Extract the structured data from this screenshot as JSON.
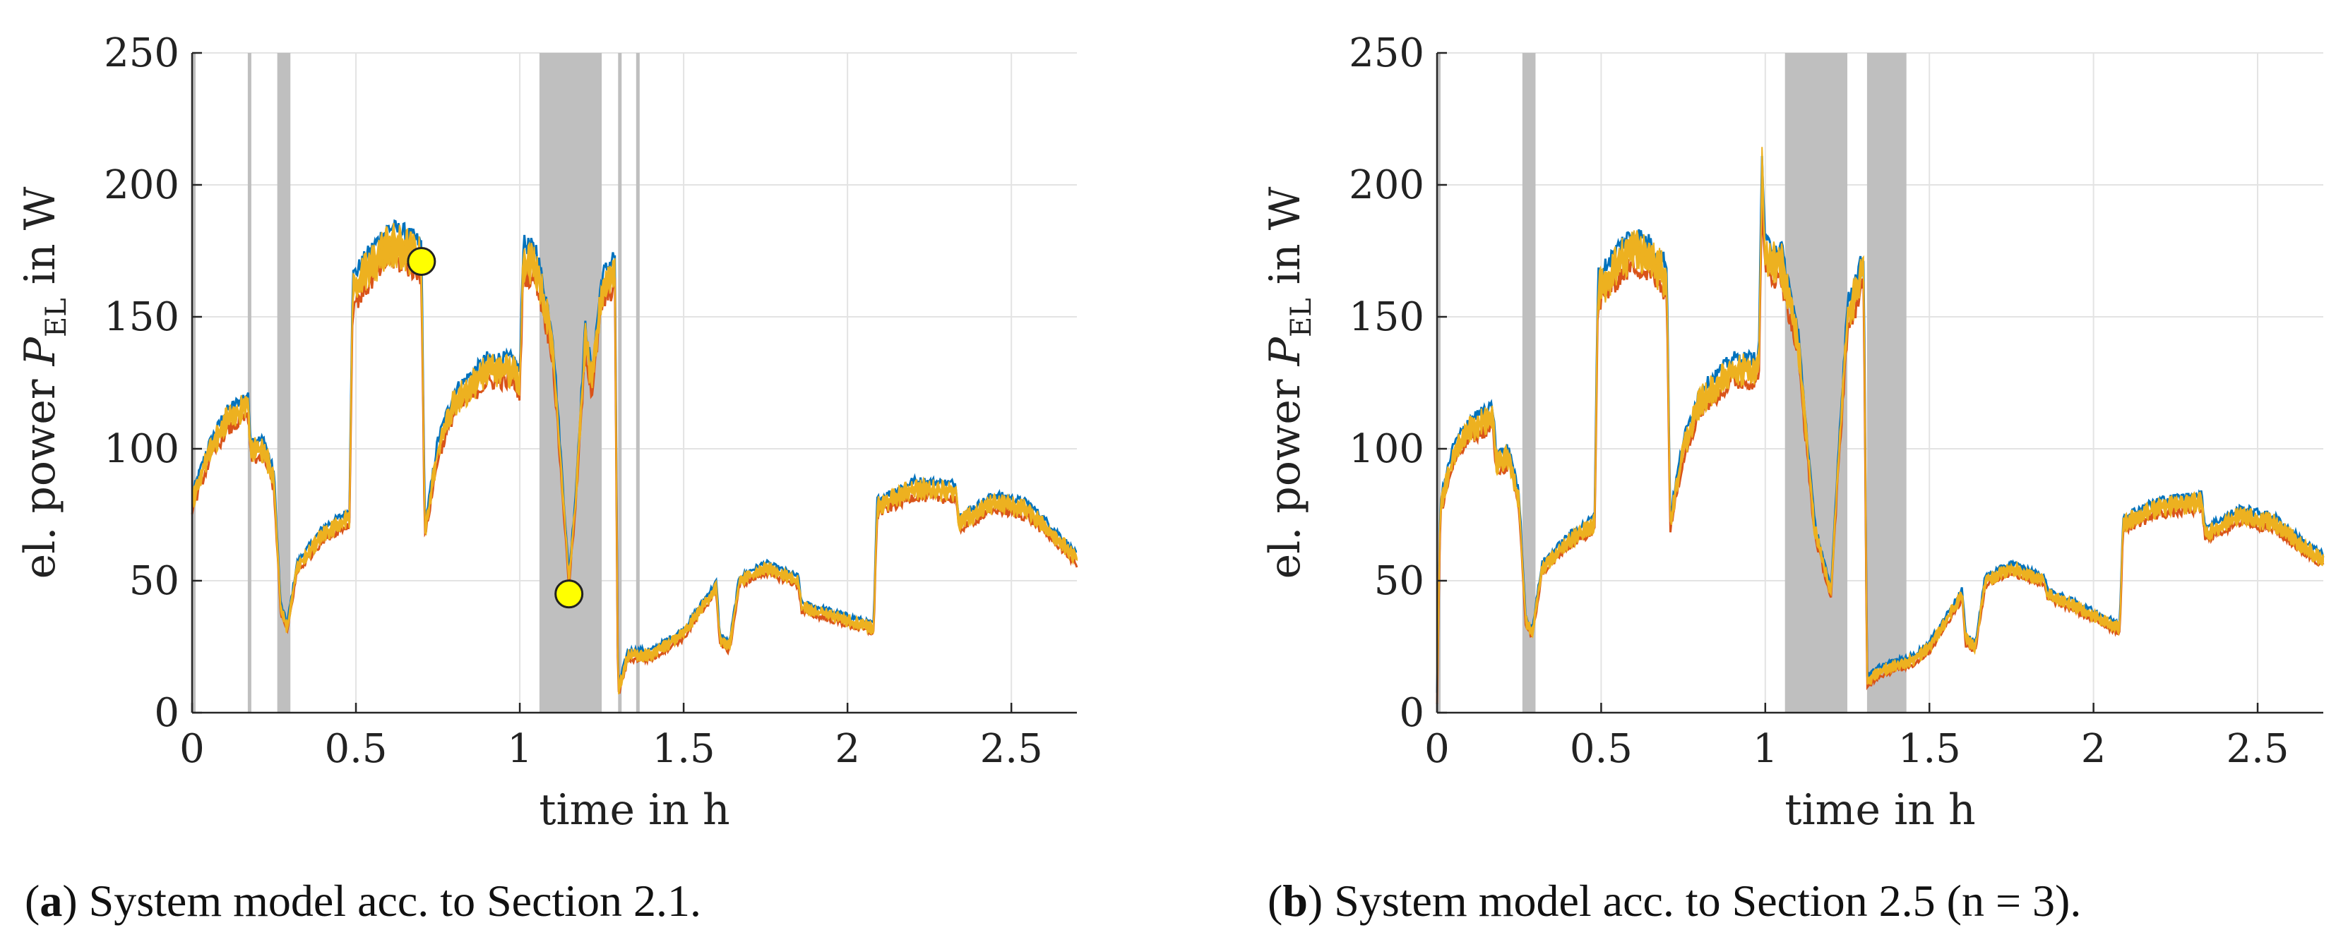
{
  "figure": {
    "panels": [
      {
        "caption_letter": "a",
        "caption_text": "System model acc. to Section 2.1."
      },
      {
        "caption_letter": "b",
        "caption_text": "System model acc. to Section 2.5 (n = 3)."
      }
    ]
  },
  "colors": {
    "blue": "#0072BD",
    "red": "#D95319",
    "yellow": "#EDB120",
    "shade": "#BFBFBF",
    "grid": "#E3E3E3",
    "marker": "#FFFF00"
  },
  "chart_data": [
    {
      "type": "line",
      "xlabel": "time in h",
      "ylabel": "el. power P_EL in W",
      "ylabel_parts": {
        "prefix": "el. power ",
        "symbol": "P",
        "subscript": "EL",
        "suffix": " in W"
      },
      "xlim": [
        0,
        2.7
      ],
      "ylim": [
        0,
        250
      ],
      "xticks": [
        0,
        0.5,
        1,
        1.5,
        2,
        2.5
      ],
      "xtick_labels": [
        "0",
        "0.5",
        "1",
        "1.5",
        "2",
        "2.5"
      ],
      "yticks": [
        0,
        50,
        100,
        150,
        200,
        250
      ],
      "ytick_labels": [
        "0",
        "50",
        "100",
        "150",
        "200",
        "250"
      ],
      "grid": true,
      "shaded_intervals": [
        [
          0.0,
          0.005
        ],
        [
          0.17,
          0.18
        ],
        [
          0.26,
          0.3
        ],
        [
          1.06,
          1.25
        ],
        [
          1.3,
          1.31
        ],
        [
          1.355,
          1.365
        ]
      ],
      "series_profile": [
        [
          0,
          80
        ],
        [
          0.05,
          98
        ],
        [
          0.1,
          110
        ],
        [
          0.17,
          117
        ],
        [
          0.18,
          100
        ],
        [
          0.22,
          100
        ],
        [
          0.25,
          88
        ],
        [
          0.27,
          40
        ],
        [
          0.29,
          32
        ],
        [
          0.32,
          55
        ],
        [
          0.4,
          68
        ],
        [
          0.48,
          74
        ],
        [
          0.49,
          160
        ],
        [
          0.56,
          172
        ],
        [
          0.6,
          178
        ],
        [
          0.65,
          176
        ],
        [
          0.7,
          172
        ],
        [
          0.71,
          68
        ],
        [
          0.75,
          100
        ],
        [
          0.8,
          118
        ],
        [
          0.9,
          130
        ],
        [
          0.98,
          130
        ],
        [
          1.0,
          125
        ],
        [
          1.01,
          172
        ],
        [
          1.05,
          170
        ],
        [
          1.1,
          140
        ],
        [
          1.15,
          50
        ],
        [
          1.17,
          80
        ],
        [
          1.2,
          142
        ],
        [
          1.22,
          125
        ],
        [
          1.25,
          160
        ],
        [
          1.29,
          168
        ],
        [
          1.3,
          8
        ],
        [
          1.33,
          22
        ],
        [
          1.4,
          22
        ],
        [
          1.5,
          30
        ],
        [
          1.6,
          48
        ],
        [
          1.61,
          28
        ],
        [
          1.64,
          25
        ],
        [
          1.67,
          50
        ],
        [
          1.75,
          55
        ],
        [
          1.85,
          50
        ],
        [
          1.86,
          40
        ],
        [
          1.95,
          37
        ],
        [
          2.08,
          32
        ],
        [
          2.09,
          78
        ],
        [
          2.2,
          85
        ],
        [
          2.33,
          84
        ],
        [
          2.34,
          72
        ],
        [
          2.45,
          80
        ],
        [
          2.55,
          77
        ],
        [
          2.65,
          65
        ],
        [
          2.7,
          58
        ]
      ],
      "markers": [
        {
          "x": 0.7,
          "y": 171
        },
        {
          "x": 1.15,
          "y": 45
        }
      ]
    },
    {
      "type": "line",
      "xlabel": "time in h",
      "ylabel": "el. power P_EL in W",
      "ylabel_parts": {
        "prefix": "el. power ",
        "symbol": "P",
        "subscript": "EL",
        "suffix": " in W"
      },
      "xlim": [
        0,
        2.7
      ],
      "ylim": [
        0,
        250
      ],
      "xticks": [
        0,
        0.5,
        1,
        1.5,
        2,
        2.5
      ],
      "xtick_labels": [
        "0",
        "0.5",
        "1",
        "1.5",
        "2",
        "2.5"
      ],
      "yticks": [
        0,
        50,
        100,
        150,
        200,
        250
      ],
      "ytick_labels": [
        "0",
        "50",
        "100",
        "150",
        "200",
        "250"
      ],
      "grid": true,
      "shaded_intervals": [
        [
          0.0,
          0.005
        ],
        [
          0.26,
          0.3
        ],
        [
          1.06,
          1.25
        ],
        [
          1.31,
          1.43
        ]
      ],
      "series_profile": [
        [
          0,
          5
        ],
        [
          0.01,
          78
        ],
        [
          0.05,
          98
        ],
        [
          0.1,
          108
        ],
        [
          0.17,
          112
        ],
        [
          0.18,
          95
        ],
        [
          0.22,
          97
        ],
        [
          0.25,
          80
        ],
        [
          0.27,
          35
        ],
        [
          0.29,
          30
        ],
        [
          0.32,
          55
        ],
        [
          0.4,
          65
        ],
        [
          0.48,
          72
        ],
        [
          0.49,
          160
        ],
        [
          0.56,
          172
        ],
        [
          0.6,
          176
        ],
        [
          0.65,
          172
        ],
        [
          0.7,
          165
        ],
        [
          0.71,
          72
        ],
        [
          0.75,
          100
        ],
        [
          0.8,
          118
        ],
        [
          0.9,
          130
        ],
        [
          0.98,
          130
        ],
        [
          0.99,
          205
        ],
        [
          1.0,
          172
        ],
        [
          1.05,
          170
        ],
        [
          1.1,
          140
        ],
        [
          1.15,
          70
        ],
        [
          1.2,
          45
        ],
        [
          1.22,
          90
        ],
        [
          1.25,
          150
        ],
        [
          1.3,
          168
        ],
        [
          1.31,
          12
        ],
        [
          1.35,
          16
        ],
        [
          1.45,
          20
        ],
        [
          1.5,
          25
        ],
        [
          1.6,
          45
        ],
        [
          1.61,
          28
        ],
        [
          1.64,
          25
        ],
        [
          1.67,
          50
        ],
        [
          1.75,
          55
        ],
        [
          1.85,
          50
        ],
        [
          1.86,
          45
        ],
        [
          1.95,
          40
        ],
        [
          2.08,
          32
        ],
        [
          2.09,
          72
        ],
        [
          2.2,
          78
        ],
        [
          2.33,
          80
        ],
        [
          2.34,
          68
        ],
        [
          2.45,
          75
        ],
        [
          2.55,
          72
        ],
        [
          2.65,
          62
        ],
        [
          2.7,
          58
        ]
      ],
      "markers": []
    }
  ]
}
